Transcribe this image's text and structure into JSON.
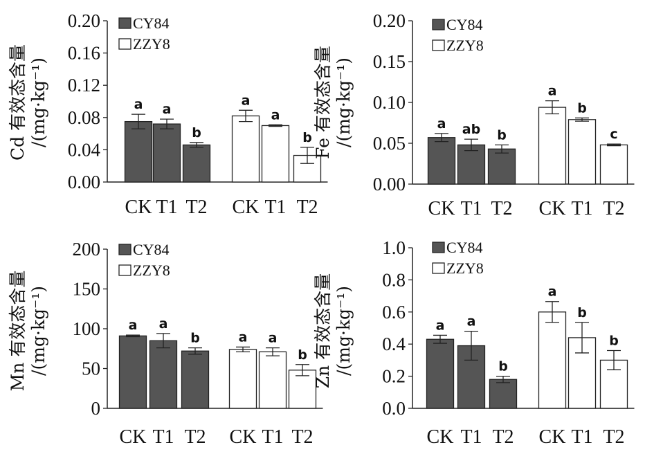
{
  "chart_data": [
    {
      "type": "bar",
      "ylabel": "Cd 有效态含量",
      "yunit": "/(mg·kg⁻¹)",
      "ylim": [
        0,
        0.2
      ],
      "yticks": [
        "0.00",
        "0.04",
        "0.08",
        "0.12",
        "0.16",
        "0.20"
      ],
      "groups": [
        {
          "series": "CY84",
          "categories": [
            "CK",
            "T1",
            "T2"
          ],
          "values": [
            0.075,
            0.072,
            0.046
          ],
          "errors": [
            0.009,
            0.006,
            0.003
          ],
          "letters": [
            "a",
            "a",
            "b"
          ]
        },
        {
          "series": "ZZY8",
          "categories": [
            "CK",
            "T1",
            "T2"
          ],
          "values": [
            0.082,
            0.07,
            0.033
          ],
          "errors": [
            0.007,
            0.001,
            0.01
          ],
          "letters": [
            "a",
            "a",
            "b"
          ]
        }
      ],
      "legend": [
        "CY84",
        "ZZY8"
      ]
    },
    {
      "type": "bar",
      "ylabel": "Fe 有效态含量",
      "yunit": "/(mg·kg⁻¹)",
      "ylim": [
        0,
        0.2
      ],
      "yticks": [
        "0.00",
        "0.05",
        "0.10",
        "0.15",
        "0.20"
      ],
      "groups": [
        {
          "series": "CY84",
          "categories": [
            "CK",
            "T1",
            "T2"
          ],
          "values": [
            0.057,
            0.048,
            0.043
          ],
          "errors": [
            0.005,
            0.007,
            0.005
          ],
          "letters": [
            "a",
            "ab",
            "b"
          ]
        },
        {
          "series": "ZZY8",
          "categories": [
            "CK",
            "T1",
            "T2"
          ],
          "values": [
            0.094,
            0.079,
            0.048
          ],
          "errors": [
            0.008,
            0.002,
            0.001
          ],
          "letters": [
            "a",
            "b",
            "c"
          ]
        }
      ],
      "legend": [
        "CY84",
        "ZZY8"
      ]
    },
    {
      "type": "bar",
      "ylabel": "Mn 有效态含量",
      "yunit": "/(mg·kg⁻¹)",
      "ylim": [
        0,
        200
      ],
      "yticks": [
        "0",
        "50",
        "100",
        "150",
        "200"
      ],
      "groups": [
        {
          "series": "CY84",
          "categories": [
            "CK",
            "T1",
            "T2"
          ],
          "values": [
            91,
            85,
            72
          ],
          "errors": [
            1,
            9,
            4
          ],
          "letters": [
            "a",
            "a",
            "b"
          ]
        },
        {
          "series": "ZZY8",
          "categories": [
            "CK",
            "T1",
            "T2"
          ],
          "values": [
            74,
            71,
            48
          ],
          "errors": [
            3,
            5,
            7
          ],
          "letters": [
            "a",
            "a",
            "b"
          ]
        }
      ],
      "legend": [
        "CY84",
        "ZZY8"
      ]
    },
    {
      "type": "bar",
      "ylabel": "Zn 有效态含量",
      "yunit": "/(mg·kg⁻¹)",
      "ylim": [
        0,
        1.0
      ],
      "yticks": [
        "0.0",
        "0.2",
        "0.4",
        "0.6",
        "0.8",
        "1.0"
      ],
      "groups": [
        {
          "series": "CY84",
          "categories": [
            "CK",
            "T1",
            "T2"
          ],
          "values": [
            0.43,
            0.39,
            0.18
          ],
          "errors": [
            0.025,
            0.09,
            0.02
          ],
          "letters": [
            "a",
            "a",
            "b"
          ]
        },
        {
          "series": "ZZY8",
          "categories": [
            "CK",
            "T1",
            "T2"
          ],
          "values": [
            0.6,
            0.44,
            0.3
          ],
          "errors": [
            0.065,
            0.095,
            0.06
          ],
          "letters": [
            "a",
            "b",
            "b"
          ]
        }
      ],
      "legend": [
        "CY84",
        "ZZY8"
      ]
    }
  ],
  "colors": {
    "CY84": "#555555",
    "ZZY8": "#ffffff",
    "stroke": "#222222"
  }
}
